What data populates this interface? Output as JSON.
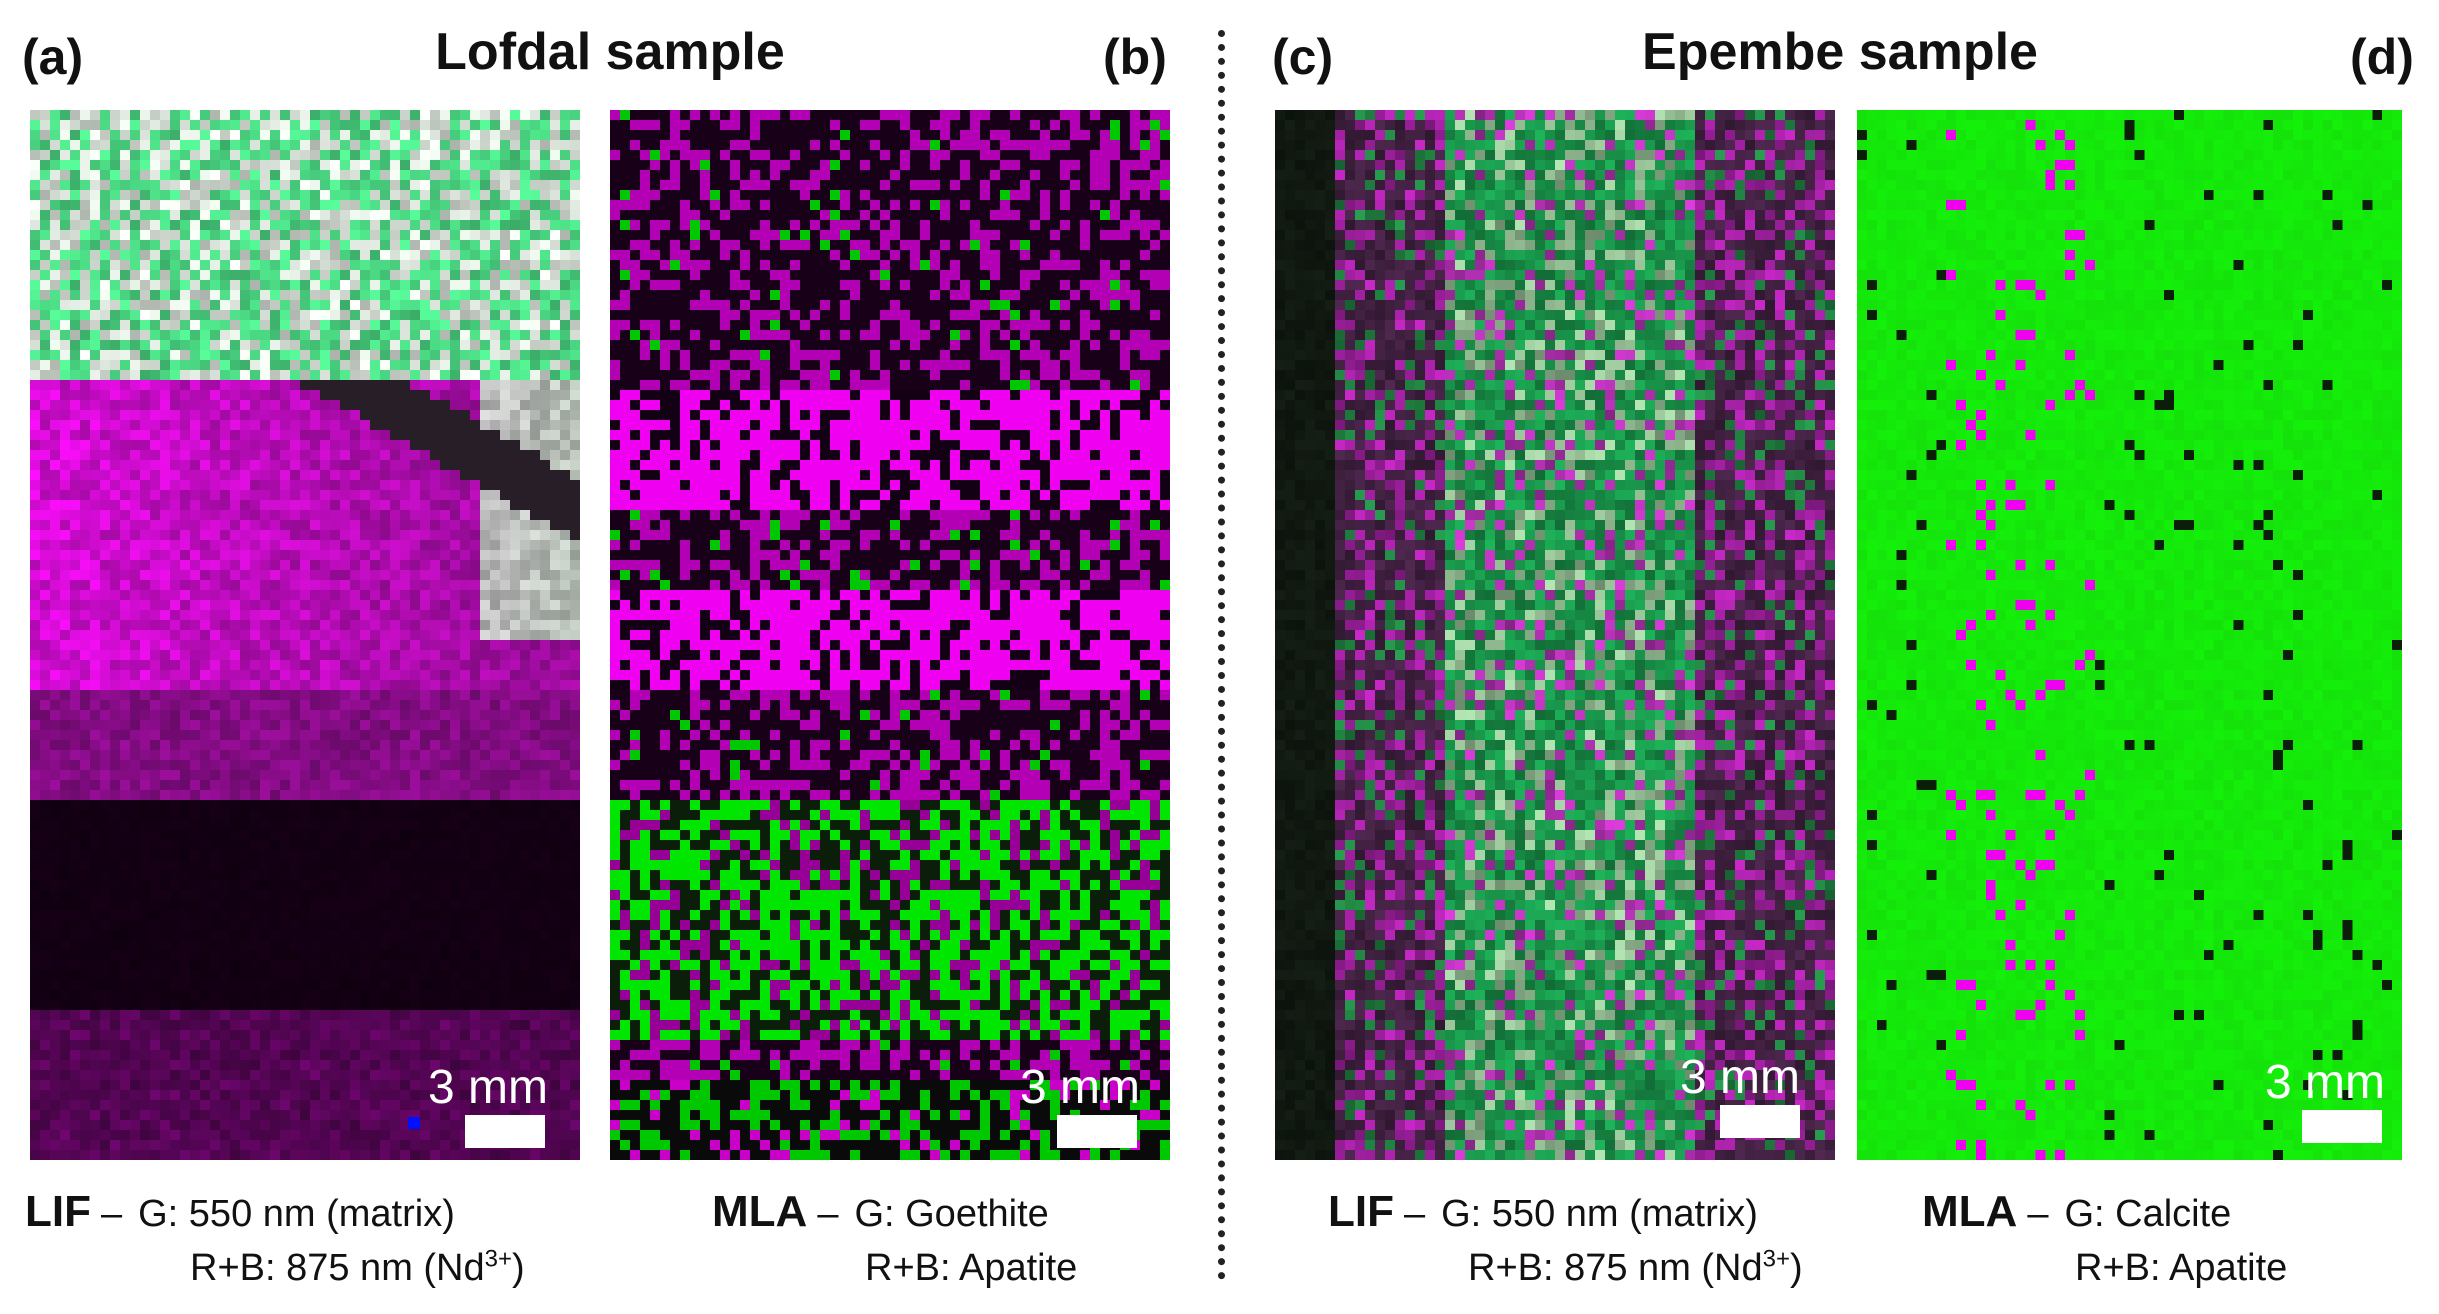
{
  "titles": {
    "left": "Lofdal sample",
    "right": "Epembe sample"
  },
  "panels": [
    {
      "id": "a",
      "label": "(a)",
      "scale": "3 mm"
    },
    {
      "id": "b",
      "label": "(b)",
      "scale": "3 mm"
    },
    {
      "id": "c",
      "label": "(c)",
      "scale": "3 mm"
    },
    {
      "id": "d",
      "label": "(d)",
      "scale": "3 mm"
    }
  ],
  "captions": {
    "lif_left": {
      "method": "LIF",
      "dash": "–",
      "line1": "G: 550 nm (matrix)",
      "line2_prefix": "R+B: 875 nm (Nd",
      "sup": "3+",
      "line2_suffix": ")"
    },
    "mla_left": {
      "method": "MLA",
      "dash": "–",
      "line1": "G: Goethite",
      "line2": "R+B: Apatite"
    },
    "lif_right": {
      "method": "LIF",
      "dash": "–",
      "line1": "G: 550 nm (matrix)",
      "line2_prefix": "R+B: 875 nm (Nd",
      "sup": "3+",
      "line2_suffix": ")"
    },
    "mla_right": {
      "method": "MLA",
      "dash": "–",
      "line1": "G: Calcite",
      "line2": "R+B: Apatite"
    }
  },
  "colors": {
    "magenta": "#ff00ff",
    "green": "#00ff00",
    "black": "#000000"
  }
}
